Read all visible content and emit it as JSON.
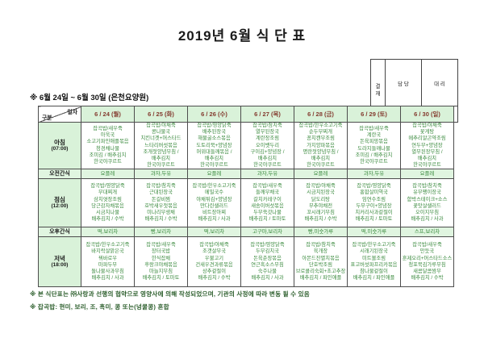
{
  "page": {
    "title": "2019년 6월 식 단 표",
    "subtitle": "※ 6월 24일 ~ 6월 30일 (은천요양원)",
    "notes": [
      "※ 본 식단표는 ㈜사랑과 선행의 협약으로 영양사에 의해 작성되었으며, 기관의 사정에 따라 변동 될 수 있음",
      "※ 잡곡밥: 현미, 보리, 조, 흑미, 콩 또는(넝쿨콩) 혼합"
    ]
  },
  "approval": {
    "stamp_label": "결\n재",
    "columns": [
      "담 당",
      "대 리"
    ]
  },
  "table": {
    "corner": {
      "top_label": "일자",
      "bottom_label": "구분"
    },
    "day_headers": [
      "6 / 24 (월)",
      "6 / 25 (화)",
      "6 / 26 (수)",
      "6 / 27 (목)",
      "6 / 28 (금)",
      "6 / 29 (토)",
      "6 / 30 (일)"
    ],
    "rows": [
      {
        "type": "meal",
        "label": "아침",
        "time": "(07:00)",
        "cells": [
          [
            "잡곡밥/새우죽",
            "아욱국",
            "소고기파인애플볶음",
            "청경채나물",
            "조미김 / 배추김치",
            "한국야쿠르트"
          ],
          [
            "잡곡밥/야채죽",
            "콩나물국",
            "치킨너겟+머스타드",
            "느타리버섯볶음",
            "조개젓양념무침 /",
            "배추김치",
            "한국야쿠르트"
          ],
          [
            "잡곡밥/영양닭죽",
            "배추된장국",
            "해물굴소스볶음",
            "도토리묵+양념장",
            "머위대들깨볶음 /",
            "배추김치",
            "한국야쿠르트"
          ],
          [
            "잡곡밥/참치죽",
            "열무된장국",
            "계란장조림",
            "오이뱃두리",
            "구이김+양념장 /",
            "배추김치",
            "한국야쿠르트"
          ],
          [
            "잡곡밥/한우소고기죽",
            "순두부찌개",
            "꽁치캔무조림",
            "가지양파볶음",
            "명란젓양념무침 /",
            "배추김치",
            "한국야쿠르트"
          ],
          [
            "잡곡밥/새우죽",
            "계란국",
            "돈육피망볶음",
            "도라지들깨나물",
            "조미김 / 배추김치",
            "한국야쿠르트"
          ],
          [
            "잡곡밥/야채죽",
            "꽃게탕",
            "메추리알곤약조림",
            "연두부+양념장",
            "열무된장무침 /",
            "배추김치",
            "한국야쿠르트"
          ]
        ]
      },
      {
        "type": "snack",
        "label": "오전간식",
        "cells": [
          "요플레",
          "과자,두유",
          "요플레",
          "과자,두유",
          "요플레",
          "과자,두유",
          "요플레"
        ]
      },
      {
        "type": "meal",
        "label": "점심",
        "time": "(12:00)",
        "cells": [
          [
            "잡곡밥/영양닭죽",
            "부대찌개",
            "삼치엿장조림",
            "당근감자채볶음",
            "시금치나물",
            "배추김치 / 수박"
          ],
          [
            "잡곡밥/참치죽",
            "근대된장국",
            "돈갈비찜",
            "호박새우젓볶음",
            "미나리무생채",
            "배추김치 / 수박"
          ],
          [
            "잡곡밥/한우소고기죽",
            "메밀국수",
            "야채튀김+양념장",
            "만다린샐러드",
            "비트장아찌",
            "배추김치 / 사과"
          ],
          [
            "잡곡밥/새우죽",
            "들깨무채국",
            "갈치카레구이",
            "새송이버섯볶음",
            "두부쑥갓나물",
            "배추김치 / 토마토"
          ],
          [
            "잡곡밥/야채죽",
            "시금치된장국",
            "닭도리탕",
            "부추야채전",
            "꼬시래기무침",
            "배추김치 / 수박"
          ],
          [
            "잡곡밥/영양닭죽",
            "홍합살미역국",
            "임연수조림",
            "두부구이+양념장",
            "치커리사과겉절이",
            "배추김치 / 토마토"
          ],
          [
            "잡곡밥/참치죽",
            "유부팽이장국",
            "함박스테이크+소스",
            "꽃맛살샐러드",
            "오이지무침",
            "배추김치 / 사과"
          ]
        ]
      },
      {
        "type": "snack",
        "label": "오후간식",
        "cells": [
          "떡,보리차",
          "빵,보리차",
          "떡,보리차",
          "고구마,보리차",
          "빵,미숫가루",
          "떡,미숫가루",
          "스프,보리차"
        ]
      },
      {
        "type": "meal",
        "label": "저녁",
        "time": "(18:00)",
        "cells": [
          [
            "잡곡밥/한우소고기죽",
            "바지락살맑은국",
            "꿔바로우",
            "마파두부",
            "돌나물사과무침",
            "배추김치 / 사과"
          ],
          [
            "잡곡밥/새우죽",
            "장터국밥",
            "한식잡채",
            "후랑크야채볶음",
            "마늘지무침",
            "배추김치 / 토마토"
          ],
          [
            "잡곡밥/야채죽",
            "조갯살무국",
            "우불고기",
            "건새우견과류볶음",
            "상추겉절이",
            "배추김치 / 수박"
          ],
          [
            "잡곡밥/영양닭죽",
            "두부김치국",
            "돈육춘장볶음",
            "연근흑소스무침",
            "숙주나물",
            "배추김치 / 사과"
          ],
          [
            "잡곡밥/참치죽",
            "육개장",
            "아몬드잔멸치볶음",
            "단호박조림",
            "브로콜리숙회+초고추장",
            "배추김치 / 파인애플"
          ],
          [
            "잡곡밥/한우소고기죽",
            "시래기된장국",
            "미트볼조림",
            "표고버섯파프리카볶음",
            "참나물겉절이",
            "배추김치 / 파인애플"
          ],
          [
            "잡곡밥/새우죽",
            "만둣국",
            "훈제오리+머스타드소스",
            "청포묵김가루무침",
            "새콤달콤쌈무",
            "배추김치 / 수박"
          ]
        ]
      }
    ]
  },
  "colors": {
    "header_bg": "#d9f2d9",
    "snack_bg": "#e0f5e0",
    "food_text": "#3a8a3e",
    "date_text": "#833a2e",
    "border": "#4d4d4d"
  }
}
